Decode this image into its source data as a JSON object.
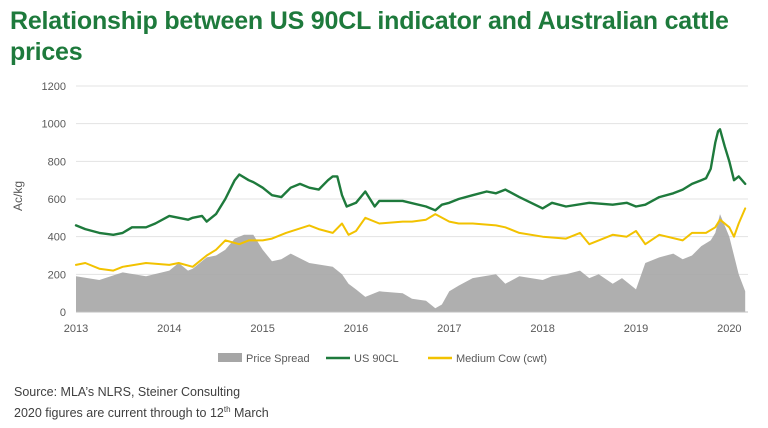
{
  "title": "Relationship between US 90CL indicator and Australian cattle prices",
  "source": {
    "line1": "Source: MLA’s NLRS, Steiner Consulting",
    "line2_pre": "2020 figures are current through to 12",
    "line2_sup": "th",
    "line2_post": " March"
  },
  "colors": {
    "price_spread": "#a6a6a6",
    "us_90cl": "#1e7a3c",
    "medium_cow": "#f2c200"
  },
  "chart_data": {
    "type": "line",
    "ylabel": "Ac/kg",
    "ylim": [
      0,
      1200
    ],
    "yticks": [
      "0",
      "200",
      "400",
      "600",
      "800",
      "1000",
      "1200"
    ],
    "xlim": [
      2013,
      2020.2
    ],
    "xticks": [
      "2013",
      "2014",
      "2015",
      "2016",
      "2017",
      "2018",
      "2019",
      "2020"
    ],
    "grid": "horizontal",
    "legend": "bottom",
    "series": [
      {
        "name": "Price Spread",
        "style": "area",
        "color": "#a6a6a6",
        "x": [
          2013.0,
          2013.25,
          2013.5,
          2013.75,
          2014.0,
          2014.1,
          2014.2,
          2014.25,
          2014.4,
          2014.5,
          2014.6,
          2014.7,
          2014.8,
          2014.9,
          2015.0,
          2015.1,
          2015.2,
          2015.3,
          2015.5,
          2015.75,
          2015.85,
          2015.92,
          2016.0,
          2016.1,
          2016.25,
          2016.5,
          2016.6,
          2016.75,
          2016.85,
          2016.92,
          2017.0,
          2017.1,
          2017.25,
          2017.5,
          2017.6,
          2017.75,
          2018.0,
          2018.1,
          2018.25,
          2018.4,
          2018.5,
          2018.6,
          2018.75,
          2018.85,
          2019.0,
          2019.1,
          2019.25,
          2019.4,
          2019.5,
          2019.6,
          2019.7,
          2019.8,
          2019.85,
          2019.9,
          2020.0,
          2020.05,
          2020.1,
          2020.17
        ],
        "values": [
          190,
          170,
          210,
          190,
          220,
          260,
          220,
          230,
          290,
          300,
          330,
          390,
          410,
          410,
          330,
          270,
          280,
          310,
          260,
          240,
          200,
          150,
          120,
          80,
          110,
          100,
          70,
          60,
          20,
          40,
          110,
          140,
          180,
          200,
          150,
          190,
          170,
          190,
          200,
          220,
          180,
          200,
          150,
          180,
          120,
          260,
          290,
          310,
          280,
          300,
          350,
          380,
          420,
          520,
          400,
          300,
          200,
          110
        ]
      },
      {
        "name": "US 90CL",
        "style": "line",
        "color": "#1e7a3c",
        "x": [
          2013.0,
          2013.1,
          2013.25,
          2013.4,
          2013.5,
          2013.6,
          2013.75,
          2013.85,
          2014.0,
          2014.1,
          2014.2,
          2014.25,
          2014.35,
          2014.4,
          2014.5,
          2014.6,
          2014.7,
          2014.75,
          2014.85,
          2014.9,
          2015.0,
          2015.1,
          2015.2,
          2015.3,
          2015.4,
          2015.5,
          2015.6,
          2015.7,
          2015.75,
          2015.8,
          2015.85,
          2015.9,
          2016.0,
          2016.1,
          2016.2,
          2016.25,
          2016.5,
          2016.75,
          2016.85,
          2016.92,
          2017.0,
          2017.1,
          2017.25,
          2017.4,
          2017.5,
          2017.6,
          2017.75,
          2018.0,
          2018.1,
          2018.25,
          2018.5,
          2018.75,
          2018.9,
          2019.0,
          2019.1,
          2019.25,
          2019.4,
          2019.5,
          2019.6,
          2019.7,
          2019.75,
          2019.8,
          2019.85,
          2019.88,
          2019.9,
          2019.95,
          2020.0,
          2020.05,
          2020.1,
          2020.17
        ],
        "values": [
          460,
          440,
          420,
          410,
          420,
          450,
          450,
          470,
          510,
          500,
          490,
          500,
          510,
          480,
          520,
          600,
          700,
          730,
          700,
          690,
          660,
          620,
          610,
          660,
          680,
          660,
          650,
          700,
          720,
          720,
          620,
          560,
          580,
          640,
          560,
          590,
          590,
          560,
          540,
          570,
          580,
          600,
          620,
          640,
          630,
          650,
          610,
          550,
          580,
          560,
          580,
          570,
          580,
          560,
          570,
          610,
          630,
          650,
          680,
          700,
          710,
          760,
          900,
          960,
          970,
          880,
          800,
          700,
          720,
          680
        ]
      },
      {
        "name": "Medium Cow (cwt)",
        "style": "line",
        "color": "#f2c200",
        "x": [
          2013.0,
          2013.1,
          2013.25,
          2013.4,
          2013.5,
          2013.75,
          2014.0,
          2014.1,
          2014.25,
          2014.4,
          2014.5,
          2014.6,
          2014.75,
          2014.85,
          2015.0,
          2015.1,
          2015.25,
          2015.5,
          2015.6,
          2015.75,
          2015.85,
          2015.92,
          2016.0,
          2016.1,
          2016.25,
          2016.5,
          2016.6,
          2016.75,
          2016.85,
          2017.0,
          2017.1,
          2017.25,
          2017.5,
          2017.6,
          2017.75,
          2018.0,
          2018.25,
          2018.4,
          2018.5,
          2018.75,
          2018.9,
          2019.0,
          2019.1,
          2019.25,
          2019.5,
          2019.6,
          2019.75,
          2019.85,
          2019.9,
          2020.0,
          2020.05,
          2020.1,
          2020.17
        ],
        "values": [
          250,
          260,
          230,
          220,
          240,
          260,
          250,
          260,
          240,
          300,
          330,
          380,
          360,
          380,
          380,
          390,
          420,
          460,
          440,
          420,
          470,
          410,
          430,
          500,
          470,
          480,
          480,
          490,
          520,
          480,
          470,
          470,
          460,
          450,
          420,
          400,
          390,
          420,
          360,
          410,
          400,
          430,
          360,
          410,
          380,
          420,
          420,
          450,
          490,
          450,
          400,
          470,
          550
        ]
      }
    ]
  }
}
